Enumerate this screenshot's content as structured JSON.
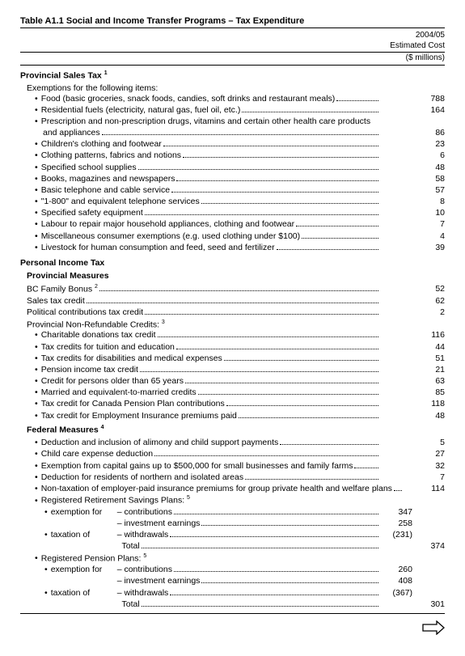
{
  "title": "Table A1.1  Social and Income Transfer Programs – Tax Expenditure",
  "header": {
    "year": "2004/05",
    "line1": "Estimated Cost",
    "line2": "($ millions)"
  },
  "pst": {
    "heading": "Provincial Sales Tax",
    "sup": "1",
    "intro": "Exemptions for the following items:",
    "items": [
      {
        "label": "Food (basic groceries, snack foods, candies, soft drinks and restaurant meals)",
        "value": "788"
      },
      {
        "label": "Residential fuels (electricity, natural gas, fuel oil, etc.)",
        "value": "164"
      },
      {
        "label": "Prescription and non-prescription drugs, vitamins and certain other health care products",
        "cont": "and appliances",
        "value": "86"
      },
      {
        "label": "Children's clothing and footwear",
        "value": "23"
      },
      {
        "label": "Clothing patterns, fabrics and notions",
        "value": "6"
      },
      {
        "label": "Specified school supplies",
        "value": "48"
      },
      {
        "label": "Books, magazines and newspapers",
        "value": "58"
      },
      {
        "label": "Basic telephone and cable service",
        "value": "57"
      },
      {
        "label": "\"1-800\" and equivalent telephone services",
        "value": "8"
      },
      {
        "label": "Specified safety equipment",
        "value": "10"
      },
      {
        "label": "Labour to repair major household appliances, clothing and footwear",
        "value": "7"
      },
      {
        "label": "Miscellaneous consumer exemptions (e.g. used clothing under $100)",
        "value": "4"
      },
      {
        "label": "Livestock for human consumption and feed, seed and fertilizer",
        "value": "39"
      }
    ]
  },
  "pit": {
    "heading": "Personal Income Tax",
    "prov": "Provincial Measures",
    "bc": {
      "label": "BC Family Bonus",
      "sup": "2",
      "value": "52"
    },
    "stc": {
      "label": "Sales tax credit",
      "value": "62"
    },
    "pol": {
      "label": "Political contributions tax credit",
      "value": "2"
    },
    "pnr": {
      "label": "Provincial Non-Refundable Credits:",
      "sup": "3"
    },
    "pnr_items": [
      {
        "label": "Charitable donations tax credit",
        "value": "116"
      },
      {
        "label": "Tax credits for tuition and education",
        "value": "44"
      },
      {
        "label": "Tax credits for disabilities and medical expenses",
        "value": "51"
      },
      {
        "label": "Pension income tax credit",
        "value": "21"
      },
      {
        "label": "Credit for persons older than 65 years",
        "value": "63"
      },
      {
        "label": "Married and equivalent-to-married credits",
        "value": "85"
      },
      {
        "label": "Tax credit for Canada Pension Plan contributions",
        "value": "118"
      },
      {
        "label": "Tax credit for Employment Insurance premiums paid",
        "value": "48"
      }
    ],
    "fed": "Federal Measures",
    "fed_sup": "4",
    "fed_items": [
      {
        "label": "Deduction and inclusion of alimony and child support payments",
        "value": "5"
      },
      {
        "label": "Child care expense deduction",
        "value": "27"
      },
      {
        "label": "Exemption from capital gains up to $500,000 for small businesses and family farms",
        "value": "32"
      },
      {
        "label": "Deduction for residents of northern and isolated areas",
        "value": "7"
      },
      {
        "label": "Non-taxation of employer-paid insurance premiums for group private health and welfare plans",
        "value": "114"
      }
    ],
    "rrsp": {
      "title": "Registered Retirement Savings Plans:",
      "sup": "5",
      "ex": "exemption for",
      "tax": "taxation of",
      "contrib": "contributions",
      "contrib_v": "347",
      "inv": "investment earnings",
      "inv_v": "258",
      "wd": "withdrawals",
      "wd_v": "(231)",
      "total": "Total",
      "total_v": "374"
    },
    "rpp": {
      "title": "Registered Pension Plans:",
      "sup": "5",
      "contrib_v": "260",
      "inv_v": "408",
      "wd_v": "(367)",
      "total_v": "301"
    }
  },
  "dash": "–"
}
